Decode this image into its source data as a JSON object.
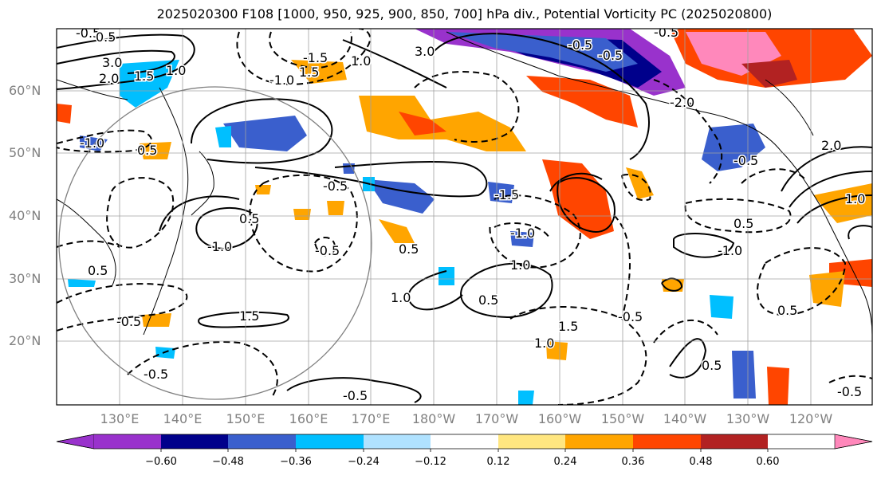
{
  "title": "2025020300 F108 [1000, 950, 925, 900, 850, 700] hPa div., Potential Vorticity PC (2025020800)",
  "lat_labels": [
    "60°N",
    "50°N",
    "40°N",
    "30°N",
    "20°N"
  ],
  "lon_labels": [
    "130°E",
    "140°E",
    "150°E",
    "160°E",
    "170°E",
    "180°W",
    "170°W",
    "160°W",
    "150°W",
    "140°W",
    "130°W",
    "120°W"
  ],
  "colorbar": {
    "ticks": [
      "−0.60",
      "−0.48",
      "−0.36",
      "−0.24",
      "−0.12",
      "0.12",
      "0.24",
      "0.36",
      "0.48",
      "0.60"
    ],
    "colors": [
      "#9932cc",
      "#00008b",
      "#3a5fcd",
      "#00bfff",
      "#b0e2ff",
      "#ffffff",
      "#ffe680",
      "#ffa500",
      "#ff4500",
      "#b22222",
      "#ff88bb"
    ]
  },
  "contour_labels": [
    "-0.5",
    "0.5",
    "3.0",
    "2.0",
    "1.5",
    "1.0",
    "-1.0",
    "1.5",
    "-1.5",
    "3.0",
    "-0.5",
    "-2.0",
    "-0.5",
    "1.0",
    "-1.0",
    "0.5",
    "-1.0",
    "-0.5",
    "-0.5",
    "0.5",
    "-1.0",
    "1.0",
    "0.5",
    "1.0",
    "1.5",
    "-0.5",
    "-0.5",
    "1.0",
    "1.5",
    "0.5",
    "-1.0",
    "-0.5",
    "0.5",
    "-0.5",
    "0.5",
    "-0.5",
    "0.5",
    "-0.5",
    "-1.5",
    "1.0",
    "2.0",
    "-0.5",
    "0.5"
  ]
}
